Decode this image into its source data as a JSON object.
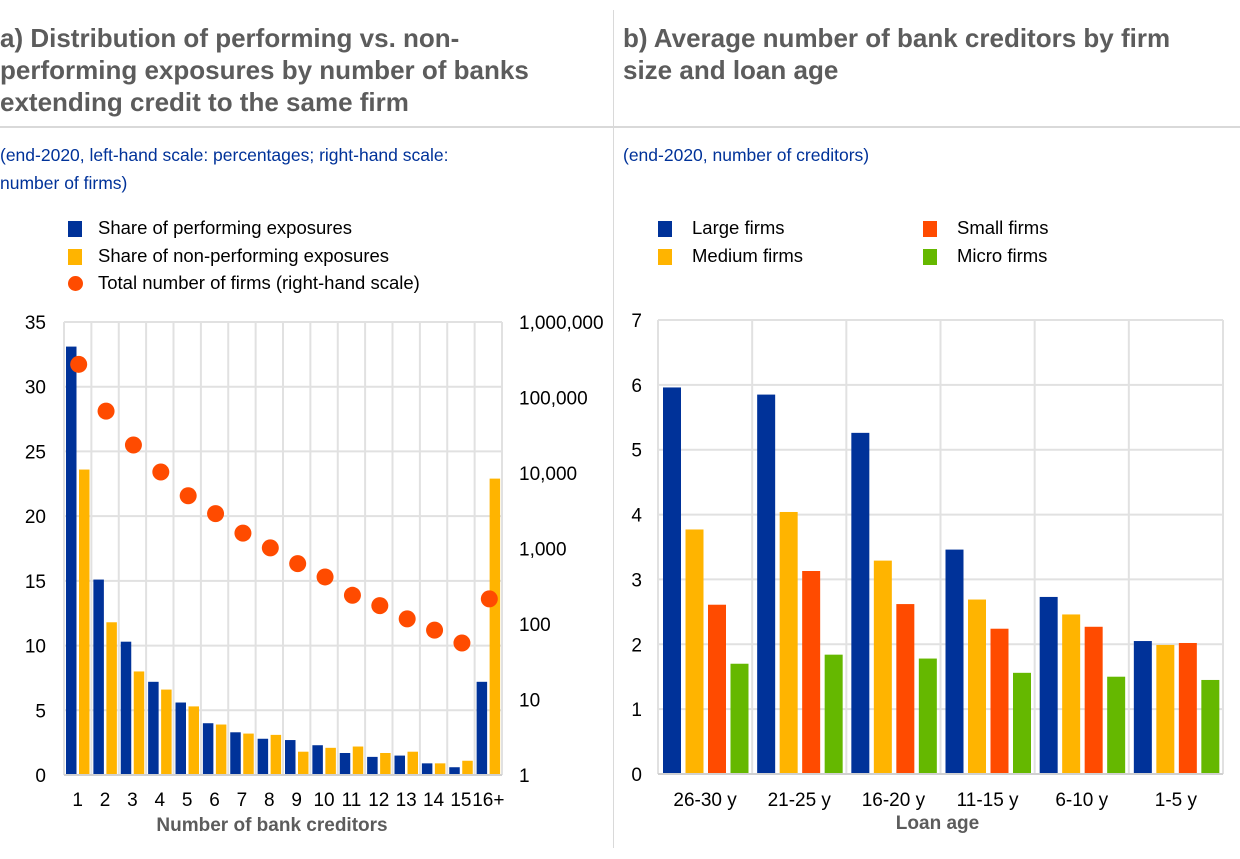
{
  "panel_a": {
    "title_lines": [
      "a) Distribution of performing vs. non-",
      "performing exposures by number of banks",
      "extending credit to the same firm"
    ],
    "subtitle_lines": [
      "(end-2020, left-hand scale: percentages; right-hand scale:",
      "number of firms)"
    ],
    "legend": [
      {
        "label": "Share of performing exposures",
        "shape": "square",
        "color": "#003299"
      },
      {
        "label": "Share of non-performing exposures",
        "shape": "square",
        "color": "#ffb400"
      },
      {
        "label": "Total number of firms (right-hand scale)",
        "shape": "circle",
        "color": "#ff4b00"
      }
    ]
  },
  "panel_b": {
    "title_lines": [
      "b) Average number of bank creditors by firm",
      "size and loan age"
    ],
    "subtitle_lines": [
      "(end-2020, number of creditors)"
    ],
    "legend": [
      {
        "label": "Large firms",
        "shape": "square",
        "color": "#003299"
      },
      {
        "label": "Small firms",
        "shape": "square",
        "color": "#ff4b00"
      },
      {
        "label": "Medium firms",
        "shape": "square",
        "color": "#ffb400"
      },
      {
        "label": "Micro firms",
        "shape": "square",
        "color": "#65b800"
      }
    ]
  },
  "chart_data": [
    {
      "type": "bar",
      "title": "a) Distribution of performing vs. non-performing exposures by number of banks extending credit to the same firm",
      "subtitle": "(end-2020, left-hand scale: percentages; right-hand scale: number of firms)",
      "xlabel": "Number of bank creditors",
      "ylabel": "",
      "categories": [
        "1",
        "2",
        "3",
        "4",
        "5",
        "6",
        "7",
        "8",
        "9",
        "10",
        "11",
        "12",
        "13",
        "14",
        "15",
        "16+"
      ],
      "ylim": [
        0,
        35
      ],
      "yticks": [
        0,
        5,
        10,
        15,
        20,
        25,
        30,
        35
      ],
      "ytick_labels": [
        "0",
        "5",
        "10",
        "15",
        "20",
        "25",
        "30",
        "35"
      ],
      "y2_scale": "log",
      "y2lim": [
        1,
        1000000
      ],
      "y2ticks": [
        1,
        10,
        100,
        1000,
        10000,
        100000,
        1000000
      ],
      "y2tick_labels": [
        "1",
        "10",
        "100",
        "1,000",
        "10,000",
        "100,000",
        "1,000,000"
      ],
      "grid": true,
      "legend_position": "top-left",
      "series": [
        {
          "name": "Share of performing exposures",
          "type": "bar",
          "axis": "left",
          "color": "#003299",
          "values": [
            33.1,
            15.1,
            10.3,
            7.2,
            5.6,
            4.0,
            3.3,
            2.8,
            2.7,
            2.3,
            1.7,
            1.4,
            1.5,
            0.9,
            0.6,
            7.2
          ]
        },
        {
          "name": "Share of non-performing exposures",
          "type": "bar",
          "axis": "left",
          "color": "#ffb400",
          "values": [
            23.6,
            11.8,
            8.0,
            6.6,
            5.3,
            3.9,
            3.2,
            3.1,
            1.8,
            2.1,
            2.2,
            1.7,
            1.8,
            0.9,
            1.1,
            22.9
          ]
        },
        {
          "name": "Total number of firms (right-hand scale)",
          "type": "scatter",
          "axis": "right",
          "color": "#ff4b00",
          "values": [
            275000,
            66000,
            23500,
            10300,
            5000,
            2900,
            1600,
            1020,
            630,
            420,
            240,
            175,
            117,
            83,
            56,
            215
          ]
        }
      ]
    },
    {
      "type": "bar",
      "title": "b) Average number of bank creditors by firm size and loan age",
      "subtitle": "(end-2020, number of creditors)",
      "xlabel": "Loan age",
      "ylabel": "",
      "categories": [
        "26-30 y",
        "21-25 y",
        "16-20 y",
        "11-15 y",
        "6-10 y",
        "1-5 y"
      ],
      "ylim": [
        0,
        7
      ],
      "yticks": [
        0,
        1,
        2,
        3,
        4,
        5,
        6,
        7
      ],
      "ytick_labels": [
        "0",
        "1",
        "2",
        "3",
        "4",
        "5",
        "6",
        "7"
      ],
      "grid": true,
      "legend_position": "top",
      "series": [
        {
          "name": "Large firms",
          "color": "#003299",
          "values": [
            5.96,
            5.85,
            5.26,
            3.46,
            2.73,
            2.05
          ]
        },
        {
          "name": "Medium firms",
          "color": "#ffb400",
          "values": [
            3.77,
            4.04,
            3.29,
            2.69,
            2.46,
            1.99
          ]
        },
        {
          "name": "Small firms",
          "color": "#ff4b00",
          "values": [
            2.61,
            3.13,
            2.62,
            2.24,
            2.27,
            2.02
          ]
        },
        {
          "name": "Micro firms",
          "color": "#65b800",
          "values": [
            1.7,
            1.84,
            1.78,
            1.56,
            1.5,
            1.45
          ]
        }
      ]
    }
  ]
}
